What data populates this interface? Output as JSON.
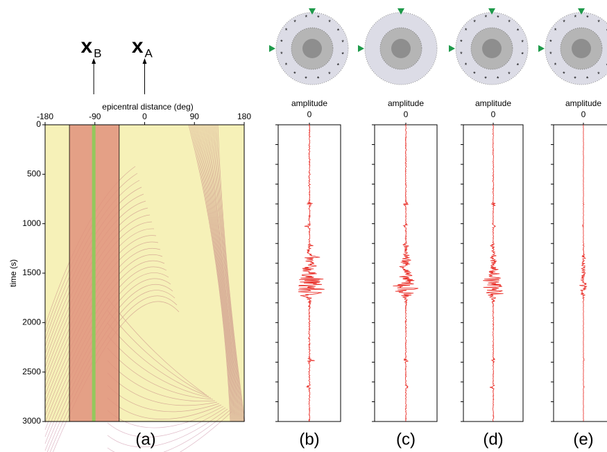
{
  "chart_data": [
    {
      "type": "heatmap",
      "xlabel": "epicentral distance (deg)",
      "ylabel": "time (s)",
      "xlim": [
        -180,
        180
      ],
      "xticks": [
        -180,
        -90,
        0,
        90,
        180
      ],
      "ylim": [
        0,
        3000
      ],
      "yticks": [
        0,
        500,
        1000,
        1500,
        2000,
        2500,
        3000
      ],
      "y_inverted": true,
      "color": "#f6f1b8",
      "highlight": {
        "range": [
          -136,
          -46
        ],
        "center": -92,
        "color": "#e1927c",
        "center_color": "#93c85c"
      },
      "markers": [
        {
          "symbol": "x",
          "sub": "B",
          "x": -92
        },
        {
          "symbol": "x",
          "sub": "A",
          "x": 0
        }
      ],
      "caption": "(a)"
    },
    {
      "type": "trace",
      "title": "amplitude",
      "xlim": [
        -1,
        1
      ],
      "xticks": [
        0
      ],
      "ylim": [
        0,
        3000
      ],
      "y_inverted": true,
      "yticks": [
        0,
        200,
        400,
        600,
        800,
        1000,
        1200,
        1400,
        1600,
        1800,
        2000,
        2200,
        2400,
        2600,
        2800,
        3000
      ],
      "color": "#e8231c",
      "caption": "(b)"
    },
    {
      "type": "trace",
      "title": "amplitude",
      "xlim": [
        -1,
        1
      ],
      "xticks": [
        0
      ],
      "ylim": [
        0,
        3000
      ],
      "y_inverted": true,
      "yticks": [
        0,
        200,
        400,
        600,
        800,
        1000,
        1200,
        1400,
        1600,
        1800,
        2000,
        2200,
        2400,
        2600,
        2800,
        3000
      ],
      "color": "#e8231c",
      "caption": "(c)"
    },
    {
      "type": "trace",
      "title": "amplitude",
      "xlim": [
        -1,
        1
      ],
      "xticks": [
        0
      ],
      "ylim": [
        0,
        3000
      ],
      "y_inverted": true,
      "yticks": [
        0,
        200,
        400,
        600,
        800,
        1000,
        1200,
        1400,
        1600,
        1800,
        2000,
        2200,
        2400,
        2600,
        2800,
        3000
      ],
      "color": "#e8231c",
      "caption": "(d)"
    },
    {
      "type": "trace",
      "title": "amplitude",
      "xlim": [
        -1,
        1
      ],
      "xticks": [
        0
      ],
      "ylim": [
        0,
        3000
      ],
      "y_inverted": true,
      "yticks": [
        0,
        200,
        400,
        600,
        800,
        1000,
        1200,
        1400,
        1600,
        1800,
        2000,
        2200,
        2400,
        2600,
        2800,
        3000
      ],
      "color": "#e8231c",
      "caption": "(e)"
    }
  ]
}
